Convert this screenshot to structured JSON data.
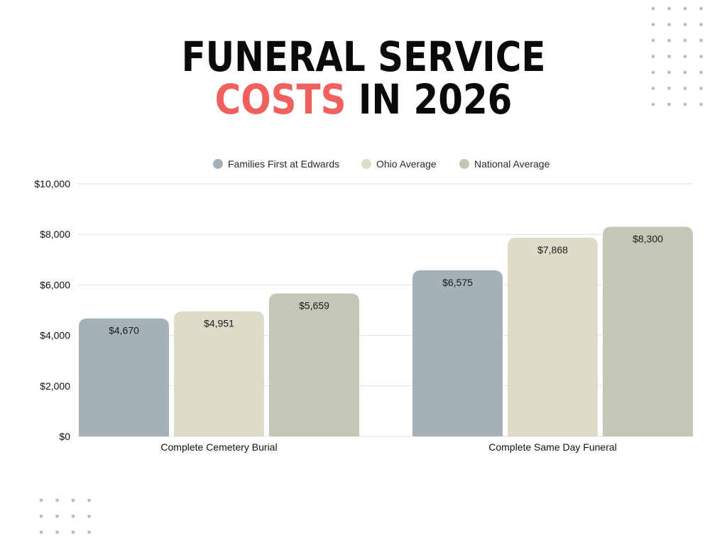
{
  "title": {
    "line1": "FUNERAL SERVICE",
    "line2_accent": "COSTS",
    "line2_rest": " IN 2026"
  },
  "colors": {
    "title_text": "#0a0a0a",
    "title_accent": "#f0605f",
    "gridline": "#e2e2e2",
    "axis_text": "#111111",
    "decor_dots": "#b8bcc4"
  },
  "chart_data": {
    "type": "bar",
    "categories": [
      "Complete Cemetery Burial",
      "Complete Same Day Funeral"
    ],
    "series": [
      {
        "name": "Families First at Edwards",
        "color": "#a4b1b9",
        "values": [
          4670,
          6575
        ],
        "labels": [
          "$4,670",
          "$6,575"
        ]
      },
      {
        "name": "Ohio Average",
        "color": "#dddcc8",
        "values": [
          4951,
          7868
        ],
        "labels": [
          "$4,951",
          "$7,868"
        ]
      },
      {
        "name": "National Average",
        "color": "#c5c6b6",
        "values": [
          5659,
          8300
        ],
        "labels": [
          "$5,659",
          "$8,300"
        ]
      }
    ],
    "ylim": [
      0,
      10000
    ],
    "yticks": [
      0,
      2000,
      4000,
      6000,
      8000,
      10000
    ],
    "ytick_labels": [
      "$0",
      "$2,000",
      "$4,000",
      "$6,000",
      "$8,000",
      "$10,000"
    ],
    "grid": true,
    "legend_position": "top-center"
  }
}
